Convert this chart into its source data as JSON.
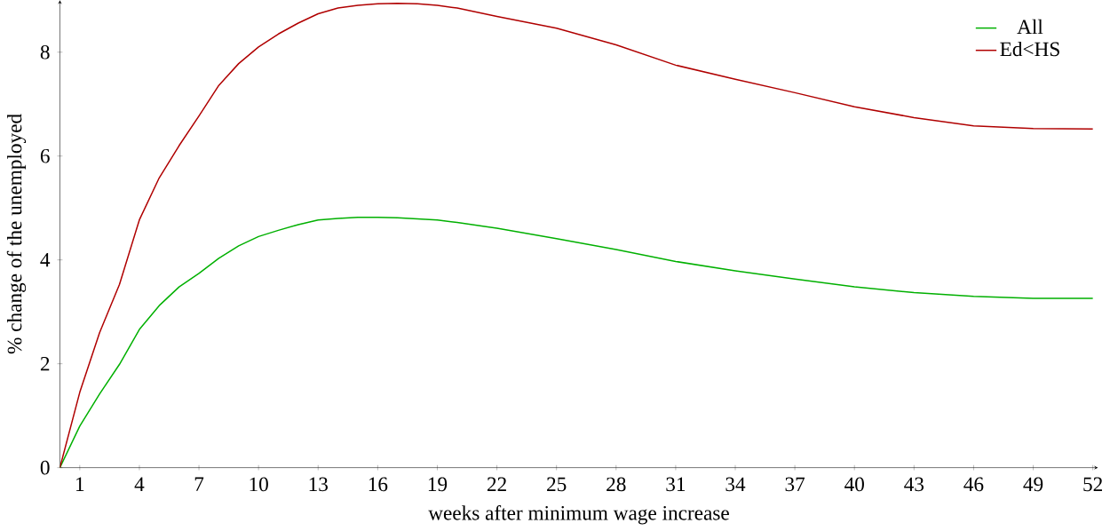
{
  "chart_data": {
    "type": "line",
    "xlabel": "weeks after minimum wage increase",
    "ylabel": "% change of the unemployed",
    "x": [
      0,
      1,
      2,
      3,
      4,
      5,
      6,
      7,
      8,
      9,
      10,
      11,
      12,
      13,
      14,
      15,
      16,
      17,
      18,
      19,
      20,
      22,
      25,
      28,
      31,
      34,
      37,
      40,
      43,
      46,
      49,
      52
    ],
    "series": [
      {
        "name": "All",
        "color": "#00b000",
        "values": [
          0,
          0.8,
          1.42,
          1.99,
          2.66,
          3.12,
          3.48,
          3.74,
          4.03,
          4.27,
          4.45,
          4.57,
          4.68,
          4.77,
          4.8,
          4.82,
          4.82,
          4.81,
          4.79,
          4.77,
          4.72,
          4.61,
          4.41,
          4.2,
          3.97,
          3.79,
          3.63,
          3.48,
          3.37,
          3.3,
          3.26,
          3.26
        ]
      },
      {
        "name": "Ed<HS",
        "color": "#b00000",
        "values": [
          0,
          1.45,
          2.6,
          3.53,
          4.77,
          5.58,
          6.2,
          6.77,
          7.36,
          7.78,
          8.1,
          8.35,
          8.56,
          8.74,
          8.85,
          8.9,
          8.93,
          8.94,
          8.93,
          8.9,
          8.85,
          8.69,
          8.46,
          8.14,
          7.75,
          7.48,
          7.22,
          6.95,
          6.74,
          6.58,
          6.53,
          6.52
        ]
      }
    ],
    "xlim": [
      0,
      52
    ],
    "ylim": [
      0,
      9
    ],
    "xticks": [
      1,
      4,
      7,
      10,
      13,
      16,
      19,
      22,
      25,
      28,
      31,
      34,
      37,
      40,
      43,
      46,
      49,
      52
    ],
    "yticks": [
      0,
      2,
      4,
      6,
      8
    ],
    "legend": "top right",
    "grid": false,
    "marker": "none",
    "line_style": "solid"
  }
}
